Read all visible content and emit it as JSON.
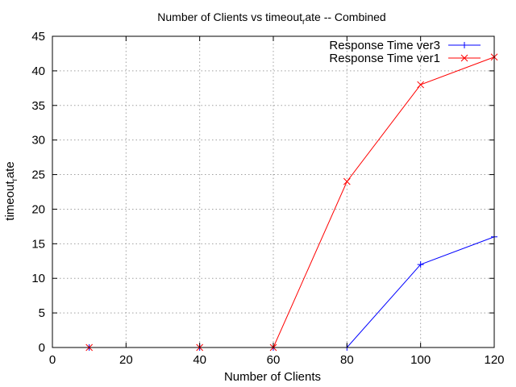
{
  "chart_data": {
    "type": "line",
    "title": {
      "pre": "Number of Clients vs timeout",
      "sub": "r",
      "post": "ate -- Combined"
    },
    "xlabel": "Number of Clients",
    "ylabel": {
      "pre": "timeout",
      "sub": "r",
      "post": "ate"
    },
    "xlim": [
      0,
      120
    ],
    "ylim": [
      0,
      45
    ],
    "xticks": [
      0,
      20,
      40,
      60,
      80,
      100,
      120
    ],
    "yticks": [
      0,
      5,
      10,
      15,
      20,
      25,
      30,
      35,
      40,
      45
    ],
    "grid": true,
    "legend_position": "top-right",
    "series": [
      {
        "name": "Response Time ver3",
        "color": "#0000ff",
        "marker": "plus",
        "x": [
          10,
          40,
          60,
          80,
          100,
          120
        ],
        "y": [
          0,
          0,
          0,
          0,
          12,
          16
        ]
      },
      {
        "name": "Response Time ver1",
        "color": "#ff0000",
        "marker": "cross",
        "x": [
          10,
          40,
          60,
          80,
          100,
          120
        ],
        "y": [
          0,
          0,
          0,
          24,
          38,
          42
        ]
      }
    ]
  }
}
